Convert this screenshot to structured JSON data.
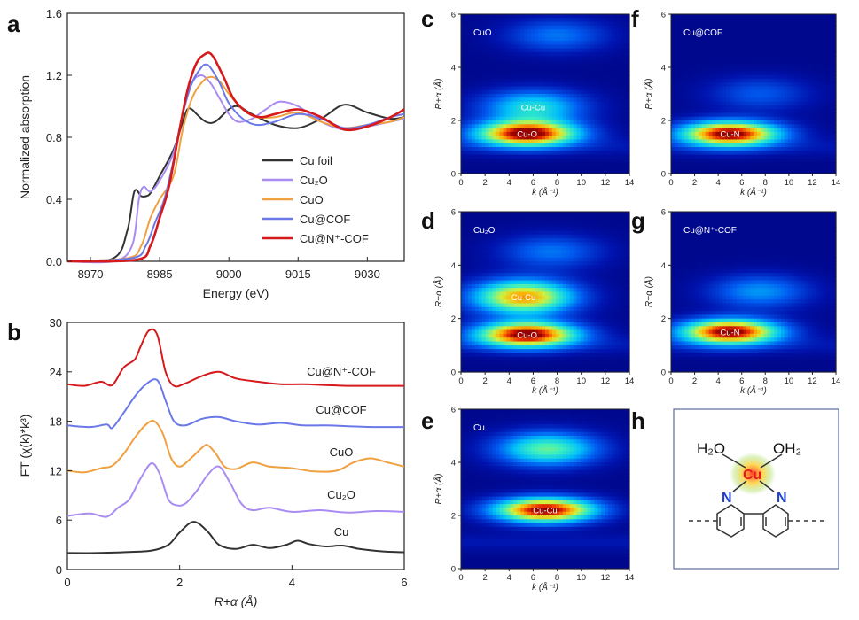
{
  "panels": {
    "a": {
      "label": "a",
      "xlabel": "Energy (eV)",
      "ylabel": "Normalized absorption"
    },
    "b": {
      "label": "b",
      "xlabel": "R+α (Å)",
      "ylabel": "FT (χ(k)*k³)"
    },
    "c": {
      "label": "c",
      "title": "CuO"
    },
    "d": {
      "label": "d",
      "title": "Cu₂O"
    },
    "e": {
      "label": "e",
      "title": "Cu"
    },
    "f": {
      "label": "f",
      "title": "Cu@COF"
    },
    "g": {
      "label": "g",
      "title": "Cu@N⁺-COF"
    },
    "h": {
      "label": "h"
    }
  },
  "chart_data": [
    {
      "id": "a",
      "type": "line",
      "xlabel": "Energy (eV)",
      "ylabel": "Normalized absorption",
      "xlim": [
        8965,
        9038
      ],
      "ylim": [
        0,
        1.6
      ],
      "xticks": [
        "8970",
        "8985",
        "9000",
        "9015",
        "9030"
      ],
      "yticks": [
        "0.0",
        "0.4",
        "0.8",
        "1.2",
        "1.6"
      ],
      "legend_position": "center-right",
      "series": [
        {
          "name": "Cu foil",
          "color": "#333333",
          "x": [
            8965,
            8975,
            8978,
            8979.5,
            8981,
            8982,
            8983,
            8985,
            8988,
            8990,
            8991,
            8992,
            8993,
            8995,
            8997,
            9000,
            9002,
            9005,
            9010,
            9015,
            9020,
            9025,
            9030,
            9035,
            9038
          ],
          "y": [
            0.0,
            0.02,
            0.2,
            0.45,
            0.42,
            0.42,
            0.44,
            0.55,
            0.72,
            0.9,
            0.98,
            0.98,
            0.95,
            0.9,
            0.9,
            0.98,
            1.0,
            0.95,
            0.88,
            0.86,
            0.92,
            1.01,
            0.96,
            0.92,
            0.93
          ]
        },
        {
          "name": "Cu₂O",
          "color": "#a98cf2",
          "x": [
            8965,
            8975,
            8979,
            8980.5,
            8981.5,
            8983,
            8985,
            8988,
            8990,
            8992,
            8994,
            8996,
            8998,
            9000,
            9002,
            9005,
            9008,
            9011,
            9015,
            9020,
            9025,
            9030,
            9035,
            9038
          ],
          "y": [
            0.0,
            0.0,
            0.1,
            0.4,
            0.48,
            0.45,
            0.52,
            0.7,
            0.95,
            1.15,
            1.2,
            1.15,
            1.05,
            0.95,
            0.9,
            0.92,
            0.98,
            1.03,
            1.0,
            0.9,
            0.85,
            0.87,
            0.9,
            0.92
          ]
        },
        {
          "name": "CuO",
          "color": "#f0a040",
          "x": [
            8965,
            8978,
            8981,
            8983,
            8985,
            8988,
            8990,
            8992,
            8994,
            8996,
            8998,
            9000,
            9003,
            9006,
            9010,
            9015,
            9020,
            9025,
            9030,
            9035,
            9038
          ],
          "y": [
            0.0,
            0.02,
            0.1,
            0.28,
            0.4,
            0.55,
            0.85,
            1.05,
            1.15,
            1.19,
            1.16,
            1.08,
            0.98,
            0.93,
            0.93,
            0.96,
            0.9,
            0.86,
            0.88,
            0.9,
            0.93
          ]
        },
        {
          "name": "Cu@COF",
          "color": "#6a78e8",
          "x": [
            8965,
            8979,
            8982,
            8984,
            8986,
            8988,
            8990,
            8992,
            8994,
            8995,
            8996,
            8998,
            9000,
            9003,
            9006,
            9010,
            9015,
            9020,
            9025,
            9030,
            9035,
            9038
          ],
          "y": [
            0.0,
            0.02,
            0.1,
            0.25,
            0.4,
            0.65,
            0.95,
            1.15,
            1.25,
            1.27,
            1.25,
            1.15,
            1.02,
            0.92,
            0.88,
            0.9,
            0.95,
            0.92,
            0.86,
            0.88,
            0.93,
            0.95
          ]
        },
        {
          "name": "Cu@N⁺-COF",
          "color": "#d6191b",
          "x": [
            8965,
            8980,
            8983,
            8985,
            8987,
            8989,
            8991,
            8993,
            8995,
            8996,
            8997,
            8999,
            9001,
            9004,
            9007,
            9010,
            9015,
            9020,
            9025,
            9030,
            9035,
            9038
          ],
          "y": [
            0.0,
            0.01,
            0.1,
            0.28,
            0.48,
            0.8,
            1.1,
            1.28,
            1.34,
            1.34,
            1.3,
            1.18,
            1.05,
            0.96,
            0.93,
            0.95,
            0.98,
            0.93,
            0.85,
            0.87,
            0.93,
            0.98
          ]
        }
      ]
    },
    {
      "id": "b",
      "type": "line",
      "xlabel": "R+α (Å)",
      "ylabel": "FT (χ(k)*k³)",
      "xlim": [
        0,
        6
      ],
      "ylim": [
        0,
        30
      ],
      "xticks": [
        "0",
        "2",
        "4",
        "6"
      ],
      "yticks": [
        "0",
        "6",
        "12",
        "18",
        "24",
        "30"
      ],
      "series": [
        {
          "name": "Cu",
          "color": "#333333",
          "x": [
            0,
            0.5,
            1.0,
            1.5,
            1.8,
            2.0,
            2.25,
            2.5,
            2.7,
            3.0,
            3.3,
            3.6,
            3.9,
            4.1,
            4.3,
            4.6,
            4.9,
            5.2,
            5.6,
            6.0
          ],
          "y": [
            2.0,
            2.0,
            2.1,
            2.3,
            3.0,
            4.5,
            5.8,
            4.6,
            3.0,
            2.5,
            3.0,
            2.6,
            3.0,
            3.5,
            3.1,
            2.8,
            2.9,
            2.5,
            2.2,
            2.1
          ]
        },
        {
          "name": "Cu₂O",
          "color": "#a98cf2",
          "x": [
            0,
            0.4,
            0.7,
            0.9,
            1.1,
            1.3,
            1.5,
            1.65,
            1.8,
            1.95,
            2.1,
            2.3,
            2.5,
            2.7,
            2.9,
            3.1,
            3.3,
            3.6,
            4.0,
            4.5,
            5.0,
            5.5,
            6.0
          ],
          "y": [
            6.5,
            6.8,
            6.4,
            7.5,
            8.5,
            11.0,
            12.9,
            11.5,
            8.5,
            7.8,
            8.0,
            9.5,
            11.5,
            12.5,
            10.5,
            8.0,
            7.2,
            7.5,
            7.0,
            7.2,
            6.9,
            7.1,
            7.0
          ]
        },
        {
          "name": "CuO",
          "color": "#f0a040",
          "x": [
            0,
            0.3,
            0.6,
            0.8,
            1.0,
            1.2,
            1.4,
            1.55,
            1.7,
            1.85,
            2.0,
            2.2,
            2.4,
            2.5,
            2.65,
            2.8,
            3.0,
            3.3,
            3.6,
            4.0,
            4.4,
            4.8,
            5.1,
            5.4,
            5.7,
            6.0
          ],
          "y": [
            12.0,
            11.8,
            12.3,
            12.6,
            14.0,
            16.0,
            17.6,
            18.0,
            16.5,
            13.5,
            12.5,
            13.5,
            14.8,
            15.1,
            14.0,
            12.5,
            12.2,
            13.0,
            12.5,
            12.3,
            11.9,
            12.0,
            13.0,
            13.5,
            13.0,
            12.5
          ]
        },
        {
          "name": "Cu@COF",
          "color": "#6a78e8",
          "x": [
            0,
            0.4,
            0.7,
            0.8,
            1.0,
            1.2,
            1.4,
            1.6,
            1.75,
            1.9,
            2.1,
            2.4,
            2.7,
            3.0,
            3.4,
            3.8,
            4.2,
            4.6,
            5.0,
            5.5,
            6.0
          ],
          "y": [
            17.5,
            17.3,
            17.6,
            17.2,
            19.0,
            21.0,
            22.5,
            23.0,
            20.5,
            18.0,
            17.5,
            18.3,
            18.5,
            18.0,
            17.6,
            17.8,
            17.5,
            17.5,
            17.4,
            17.3,
            17.3
          ]
        },
        {
          "name": "Cu@N⁺-COF",
          "color": "#d6191b",
          "x": [
            0,
            0.3,
            0.6,
            0.8,
            1.0,
            1.2,
            1.3,
            1.45,
            1.6,
            1.75,
            1.9,
            2.1,
            2.4,
            2.7,
            3.0,
            3.4,
            3.8,
            4.2,
            4.6,
            5.0,
            5.5,
            6.0
          ],
          "y": [
            22.5,
            22.3,
            22.8,
            22.4,
            24.5,
            25.5,
            27.0,
            29.0,
            28.5,
            24.0,
            22.3,
            22.6,
            23.5,
            24.0,
            23.2,
            22.8,
            22.5,
            22.5,
            22.4,
            22.3,
            22.3,
            22.3
          ]
        }
      ],
      "annotations": [
        "Cu@N⁺-COF",
        "Cu@COF",
        "CuO",
        "Cu₂O",
        "Cu"
      ]
    },
    {
      "id": "c",
      "type": "heatmap",
      "title": "CuO",
      "xlabel": "k (Å⁻¹)",
      "ylabel": "R+α (Å)",
      "xlim": [
        0,
        14
      ],
      "ylim": [
        0,
        6
      ],
      "xticks": [
        "0",
        "2",
        "4",
        "6",
        "8",
        "10",
        "12",
        "14"
      ],
      "yticks": [
        "0",
        "2",
        "4",
        "6"
      ],
      "peaks": [
        {
          "k": 5.5,
          "r": 1.5,
          "intensity": 1.0,
          "label": "Cu-O"
        },
        {
          "k": 6.0,
          "r": 2.5,
          "intensity": 0.45,
          "label": "Cu-Cu"
        },
        {
          "k": 8.0,
          "r": 5.2,
          "intensity": 0.25,
          "label": ""
        }
      ]
    },
    {
      "id": "d",
      "type": "heatmap",
      "title": "Cu₂O",
      "xlabel": "k (Å⁻¹)",
      "ylabel": "R+α (Å)",
      "xlim": [
        0,
        14
      ],
      "ylim": [
        0,
        6
      ],
      "xticks": [
        "0",
        "2",
        "4",
        "6",
        "8",
        "10",
        "12",
        "14"
      ],
      "yticks": [
        "0",
        "2",
        "4",
        "6"
      ],
      "peaks": [
        {
          "k": 5.5,
          "r": 1.4,
          "intensity": 1.0,
          "label": "Cu-O"
        },
        {
          "k": 5.2,
          "r": 2.8,
          "intensity": 0.8,
          "label": "Cu-Cu"
        },
        {
          "k": 7.5,
          "r": 4.5,
          "intensity": 0.25,
          "label": ""
        }
      ]
    },
    {
      "id": "e",
      "type": "heatmap",
      "title": "Cu",
      "xlabel": "k (Å⁻¹)",
      "ylabel": "R+α (Å)",
      "xlim": [
        0,
        14
      ],
      "ylim": [
        0,
        6
      ],
      "xticks": [
        "0",
        "2",
        "4",
        "6",
        "8",
        "10",
        "12",
        "14"
      ],
      "yticks": [
        "0",
        "2",
        "4",
        "6"
      ],
      "peaks": [
        {
          "k": 7.0,
          "r": 2.2,
          "intensity": 1.0,
          "label": "Cu-Cu"
        },
        {
          "k": 7.2,
          "r": 4.5,
          "intensity": 0.55,
          "label": ""
        }
      ]
    },
    {
      "id": "f",
      "type": "heatmap",
      "title": "Cu@COF",
      "xlabel": "k (Å⁻¹)",
      "ylabel": "R+α (Å)",
      "xlim": [
        0,
        14
      ],
      "ylim": [
        0,
        6
      ],
      "xticks": [
        "0",
        "2",
        "4",
        "6",
        "8",
        "10",
        "12",
        "14"
      ],
      "yticks": [
        "0",
        "2",
        "4",
        "6"
      ],
      "peaks": [
        {
          "k": 5.0,
          "r": 1.5,
          "intensity": 1.0,
          "label": "Cu-N"
        },
        {
          "k": 7.5,
          "r": 3.0,
          "intensity": 0.2,
          "label": ""
        }
      ]
    },
    {
      "id": "g",
      "type": "heatmap",
      "title": "Cu@N⁺-COF",
      "xlabel": "k (Å⁻¹)",
      "ylabel": "R+α (Å)",
      "xlim": [
        0,
        14
      ],
      "ylim": [
        0,
        6
      ],
      "xticks": [
        "0",
        "2",
        "4",
        "6",
        "8",
        "10",
        "12",
        "14"
      ],
      "yticks": [
        "0",
        "2",
        "4",
        "6"
      ],
      "peaks": [
        {
          "k": 5.0,
          "r": 1.5,
          "intensity": 1.0,
          "label": "Cu-N"
        },
        {
          "k": 7.5,
          "r": 3.0,
          "intensity": 0.3,
          "label": ""
        }
      ]
    }
  ],
  "structure": {
    "left_ligand": "H₂O",
    "right_ligand": "OH₂",
    "metal": "Cu",
    "n_left": "N",
    "n_right": "N"
  }
}
